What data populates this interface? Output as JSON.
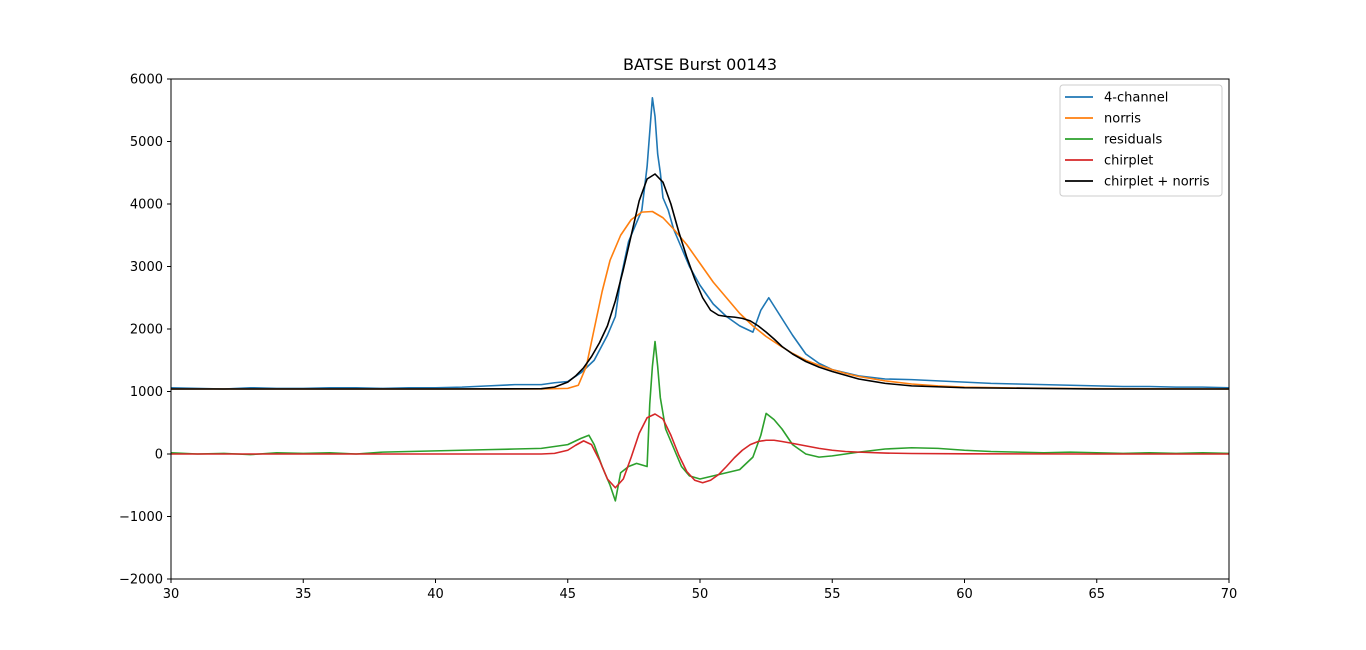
{
  "chart_data": {
    "type": "line",
    "title": "BATSE Burst 00143",
    "xlabel": "",
    "ylabel": "",
    "xlim": [
      30,
      70
    ],
    "ylim": [
      -2000,
      6000
    ],
    "x_ticks": [
      30,
      35,
      40,
      45,
      50,
      55,
      60,
      65,
      70
    ],
    "y_ticks": [
      -2000,
      -1000,
      0,
      1000,
      2000,
      3000,
      4000,
      5000,
      6000
    ],
    "grid": false,
    "legend_position": "top-right",
    "series": [
      {
        "name": "4-channel",
        "color": "#1f77b4",
        "x": [
          30,
          31,
          32,
          33,
          34,
          35,
          36,
          37,
          38,
          39,
          40,
          41,
          42,
          43,
          44,
          44.5,
          45,
          45.5,
          46,
          46.5,
          46.8,
          47,
          47.3,
          47.5,
          47.8,
          48,
          48.2,
          48.3,
          48.4,
          48.5,
          48.6,
          48.8,
          49,
          49.3,
          49.6,
          50,
          50.5,
          51,
          51.5,
          52,
          52.3,
          52.6,
          52.9,
          53.2,
          53.5,
          54,
          54.5,
          55,
          55.5,
          56,
          57,
          58,
          59,
          60,
          61,
          62,
          63,
          64,
          65,
          66,
          67,
          68,
          69,
          70
        ],
        "values": [
          1060,
          1050,
          1040,
          1060,
          1050,
          1050,
          1060,
          1060,
          1050,
          1060,
          1060,
          1070,
          1090,
          1110,
          1110,
          1140,
          1160,
          1300,
          1500,
          1900,
          2200,
          2800,
          3400,
          3600,
          3900,
          4600,
          5700,
          5400,
          4800,
          4500,
          4100,
          3900,
          3600,
          3300,
          3000,
          2700,
          2400,
          2200,
          2050,
          1950,
          2300,
          2500,
          2300,
          2100,
          1900,
          1600,
          1450,
          1350,
          1300,
          1250,
          1200,
          1190,
          1170,
          1150,
          1130,
          1120,
          1110,
          1100,
          1090,
          1080,
          1080,
          1070,
          1070,
          1060
        ]
      },
      {
        "name": "norris",
        "color": "#ff7f0e",
        "x": [
          30,
          35,
          40,
          44,
          45,
          45.4,
          45.7,
          46,
          46.3,
          46.6,
          47,
          47.4,
          47.8,
          48.2,
          48.6,
          49,
          49.5,
          50,
          50.5,
          51,
          51.5,
          52,
          52.5,
          53,
          53.5,
          54,
          54.5,
          55,
          55.5,
          56,
          57,
          58,
          59,
          60,
          62,
          65,
          70
        ],
        "values": [
          1040,
          1040,
          1040,
          1040,
          1050,
          1100,
          1400,
          2000,
          2600,
          3100,
          3500,
          3750,
          3870,
          3880,
          3780,
          3600,
          3350,
          3050,
          2750,
          2500,
          2250,
          2050,
          1880,
          1740,
          1610,
          1500,
          1420,
          1350,
          1290,
          1240,
          1170,
          1120,
          1090,
          1070,
          1055,
          1045,
          1040
        ]
      },
      {
        "name": "residuals",
        "color": "#2ca02c",
        "x": [
          30,
          31,
          32,
          33,
          34,
          35,
          36,
          37,
          38,
          39,
          40,
          41,
          42,
          43,
          44,
          45,
          45.5,
          45.8,
          46,
          46.3,
          46.6,
          46.8,
          47,
          47.3,
          47.6,
          48,
          48.1,
          48.2,
          48.3,
          48.4,
          48.5,
          48.7,
          49,
          49.3,
          49.6,
          50,
          50.5,
          51,
          51.5,
          52,
          52.3,
          52.5,
          52.8,
          53.1,
          53.5,
          54,
          54.5,
          55,
          56,
          57,
          58,
          59,
          60,
          61,
          62,
          63,
          64,
          65,
          66,
          67,
          68,
          69,
          70
        ],
        "values": [
          20,
          0,
          10,
          -10,
          20,
          10,
          20,
          0,
          30,
          40,
          50,
          60,
          70,
          80,
          90,
          150,
          250,
          300,
          150,
          -200,
          -500,
          -750,
          -300,
          -200,
          -150,
          -200,
          800,
          1400,
          1800,
          1400,
          900,
          400,
          100,
          -200,
          -350,
          -400,
          -350,
          -300,
          -250,
          -50,
          300,
          650,
          550,
          400,
          150,
          0,
          -50,
          -30,
          30,
          80,
          100,
          90,
          60,
          40,
          30,
          20,
          30,
          20,
          10,
          20,
          10,
          20,
          10
        ]
      },
      {
        "name": "chirplet",
        "color": "#d62728",
        "x": [
          30,
          35,
          40,
          44,
          44.5,
          45,
          45.3,
          45.6,
          45.9,
          46.2,
          46.5,
          46.8,
          47.1,
          47.4,
          47.7,
          48,
          48.3,
          48.6,
          48.9,
          49.2,
          49.5,
          49.8,
          50.1,
          50.4,
          50.7,
          51,
          51.3,
          51.6,
          51.9,
          52.2,
          52.5,
          52.8,
          53.1,
          53.5,
          54,
          54.5,
          55,
          55.5,
          56,
          57,
          58,
          60,
          65,
          70
        ],
        "values": [
          0,
          0,
          0,
          0,
          10,
          60,
          140,
          210,
          150,
          -100,
          -400,
          -540,
          -400,
          -50,
          330,
          580,
          640,
          560,
          300,
          -20,
          -280,
          -420,
          -460,
          -420,
          -330,
          -200,
          -60,
          60,
          150,
          200,
          220,
          220,
          200,
          170,
          130,
          90,
          60,
          40,
          30,
          15,
          8,
          3,
          0,
          0
        ]
      },
      {
        "name": "chirplet + norris",
        "color": "#000000",
        "x": [
          30,
          35,
          40,
          44,
          44.5,
          45,
          45.3,
          45.6,
          45.9,
          46.2,
          46.5,
          46.8,
          47.1,
          47.4,
          47.7,
          48,
          48.3,
          48.6,
          48.9,
          49.2,
          49.5,
          49.8,
          50.1,
          50.4,
          50.7,
          51,
          51.3,
          51.6,
          51.9,
          52.2,
          52.5,
          52.8,
          53.1,
          53.5,
          54,
          54.5,
          55,
          55.5,
          56,
          57,
          58,
          60,
          65,
          70
        ],
        "values": [
          1040,
          1040,
          1040,
          1045,
          1070,
          1150,
          1250,
          1380,
          1560,
          1780,
          2050,
          2450,
          2950,
          3500,
          4050,
          4400,
          4480,
          4350,
          4000,
          3550,
          3150,
          2800,
          2500,
          2300,
          2220,
          2200,
          2190,
          2170,
          2130,
          2050,
          1950,
          1840,
          1720,
          1600,
          1480,
          1390,
          1320,
          1260,
          1200,
          1130,
          1090,
          1060,
          1040,
          1040
        ]
      }
    ]
  }
}
